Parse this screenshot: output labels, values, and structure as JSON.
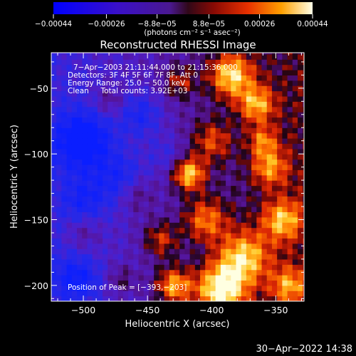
{
  "chart_data": {
    "type": "heatmap",
    "title": "Reconstructed RHESSI Image",
    "xlabel": "Heliocentric X (arcsec)",
    "ylabel": "Heliocentric Y (arcsec)",
    "xlim": [
      -525,
      -328
    ],
    "ylim": [
      -212,
      -23
    ],
    "x_ticks": [
      -500,
      -450,
      -400,
      -350
    ],
    "x_tick_labels": [
      "−500",
      "−450",
      "−400",
      "−350"
    ],
    "y_ticks": [
      -50,
      -100,
      -150,
      -200
    ],
    "y_tick_labels": [
      "−50",
      "−100",
      "−150",
      "−200"
    ],
    "colorbar": {
      "min": -0.00044,
      "max": 0.00044,
      "ticks": [
        -0.00044,
        -0.00026,
        -8.8e-05,
        8.8e-05,
        0.00026,
        0.00044
      ],
      "tick_labels": [
        "−0.00044",
        "−0.00026",
        "−8.8e−05",
        "8.8e−05",
        "0.00026",
        "0.00044"
      ],
      "unit_label": "(photons cm⁻² s⁻¹ asec⁻²)"
    },
    "annotations": [
      "7−Apr−2003 21:11:44.000 to 21:15:36.000",
      "Detectors: 3F 4F 5F 6F 7F 8F, Att 0",
      "Energy Range: 25.0 − 50.0 keV",
      "Clean     Total counts: 3.92E+03"
    ],
    "peak_label": "Position of Peak = [−393,−203]",
    "peak": [
      -393,
      -203
    ],
    "colors": {
      "background": "#000000",
      "low": "#1b1bff",
      "mid": "#5a0c8a",
      "high_red": "#c81e08",
      "high_orange": "#ff8a00",
      "peak": "#ffffe0"
    }
  },
  "footer": {
    "date": "30−Apr−2022 14:38"
  }
}
